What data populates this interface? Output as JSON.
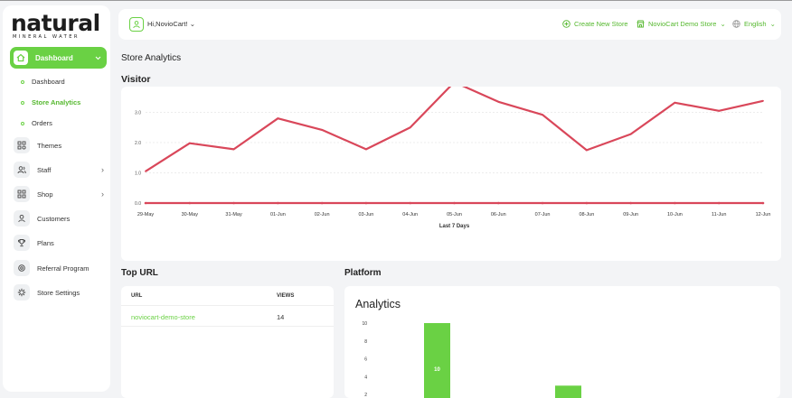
{
  "brand": {
    "logo_word": "natural",
    "logo_sub": "MINERAL WATER"
  },
  "sidebar": {
    "dashboard": {
      "label": "Dashboard",
      "icon": "home-icon"
    },
    "sub_items": [
      {
        "label": "Dashboard",
        "active": false
      },
      {
        "label": "Store Analytics",
        "active": true
      },
      {
        "label": "Orders",
        "active": false
      }
    ],
    "items": [
      {
        "label": "Themes",
        "icon": "themes-icon",
        "has_chevron": false
      },
      {
        "label": "Staff",
        "icon": "users-icon",
        "has_chevron": true
      },
      {
        "label": "Shop",
        "icon": "grid-icon",
        "has_chevron": true
      },
      {
        "label": "Customers",
        "icon": "user-icon",
        "has_chevron": false
      },
      {
        "label": "Plans",
        "icon": "trophy-icon",
        "has_chevron": false
      },
      {
        "label": "Referral Program",
        "icon": "gear-icon",
        "has_chevron": false
      },
      {
        "label": "Store Settings",
        "icon": "settings-icon",
        "has_chevron": false
      }
    ]
  },
  "header": {
    "greeting": "Hi,NovioCart!",
    "create_store": "Create New Store",
    "store_name": "NovioCart Demo Store",
    "language": "English"
  },
  "page": {
    "title": "Store Analytics",
    "visitor_title": "Visitor"
  },
  "chart_data": [
    {
      "type": "line",
      "title": "Visitor",
      "xlabel": "Last 7 Days",
      "ylabel": "",
      "x": [
        "29-May",
        "30-May",
        "31-May",
        "01-Jun",
        "02-Jun",
        "03-Jun",
        "04-Jun",
        "05-Jun",
        "06-Jun",
        "07-Jun",
        "08-Jun",
        "09-Jun",
        "10-Jun",
        "11-Jun",
        "12-Jun"
      ],
      "y_ticks": [
        "0.0",
        "1.0",
        "2.0",
        "3.0"
      ],
      "ylim": [
        0,
        4
      ],
      "series": [
        {
          "values": [
            1.05,
            1.98,
            1.78,
            2.8,
            2.42,
            1.78,
            2.5,
            4.0,
            3.35,
            2.92,
            1.75,
            2.28,
            3.32,
            3.05,
            3.38
          ]
        },
        {
          "values": [
            0,
            0,
            0,
            0,
            0,
            0,
            0,
            0,
            0,
            0,
            0,
            0,
            0,
            0,
            0
          ]
        }
      ],
      "color": "#d9475a",
      "grid": true
    },
    {
      "type": "bar",
      "title": "Analytics",
      "y_ticks": [
        "2",
        "4",
        "6",
        "8",
        "10"
      ],
      "ylim": [
        0,
        10
      ],
      "values": [
        10,
        3
      ],
      "data_labels": [
        "10",
        ""
      ],
      "color": "#6ad144"
    }
  ],
  "top_url": {
    "title": "Top URL",
    "columns": [
      "URL",
      "VIEWS"
    ],
    "rows": [
      {
        "url": "noviocart-demo-store",
        "views": "14"
      }
    ]
  },
  "platform": {
    "title": "Platform",
    "analytics_title": "Analytics"
  },
  "colors": {
    "accent": "#6ad144",
    "line": "#d9475a",
    "background": "#f3f4f6"
  }
}
